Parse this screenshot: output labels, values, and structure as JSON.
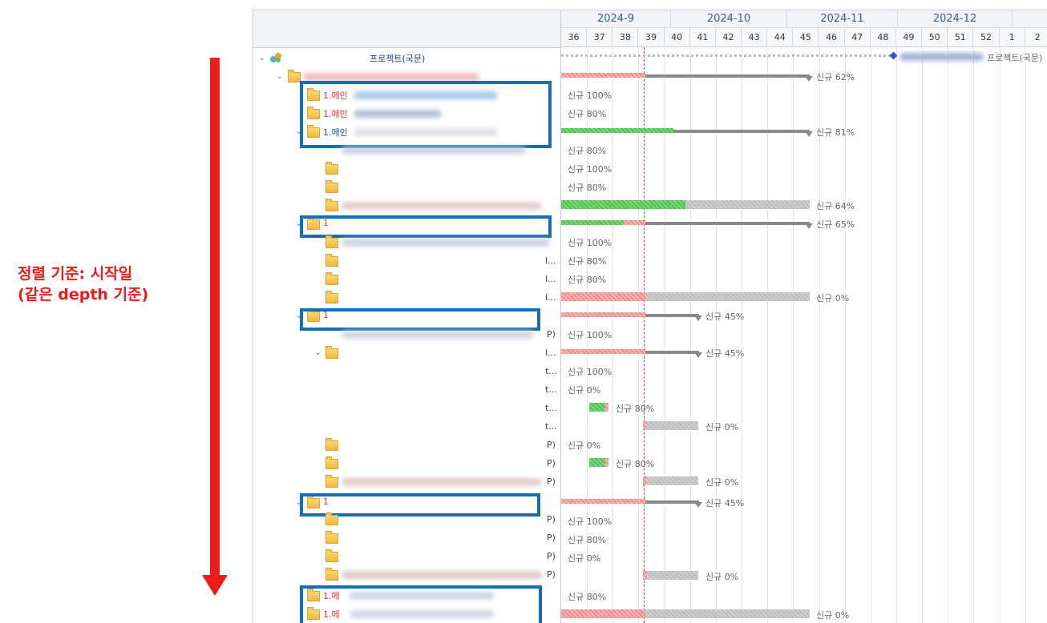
{
  "annotation": {
    "line1": "정렬 기준: 시작일",
    "line2": "(같은 depth 기준)",
    "color": "#ea1c1c"
  },
  "timeline": {
    "months": [
      {
        "label": "2024-9"
      },
      {
        "label": "2024-10"
      },
      {
        "label": "2024-11"
      },
      {
        "label": "2024-12"
      },
      {
        "label": ""
      }
    ],
    "weeks": [
      "36",
      "37",
      "38",
      "39",
      "40",
      "41",
      "42",
      "43",
      "44",
      "45",
      "46",
      "47",
      "48",
      "49",
      "50",
      "51",
      "52",
      "1",
      "2"
    ]
  },
  "tree": {
    "root_label": "프로젝트(국문)",
    "row_labels": {
      "r1": "1.메인",
      "r2": "1.메인",
      "r3": "1.메인",
      "r13": "1",
      "r18": "1",
      "r30": "1",
      "r35": "1.메",
      "r36": "1.메"
    },
    "truncated": {
      "t13": "l...",
      "t14": "l...",
      "t15": "l...",
      "t16": "l...",
      "t17": "P)",
      "t19": "t...",
      "t20": "t...",
      "t21": "t...",
      "t22": "t...",
      "t23": "P)",
      "t24": "P)",
      "t25": "P)",
      "t26": "P)",
      "t27": "P)",
      "t28": "P)",
      "t29": "P)"
    }
  },
  "bars": {
    "root": "프로젝트(국문)",
    "b0": "신규 62%",
    "b1": "신규 100%",
    "b2": "신규 80%",
    "b3": "신규 81%",
    "b4": "신규 80%",
    "b5": "신규 100%",
    "b6": "신규 80%",
    "b7": "신규 64%",
    "b8": "신규 65%",
    "b9": "신규 100%",
    "b10": "신규 80%",
    "b11": "신규 80%",
    "b12": "신규 0%",
    "b13": "신규 45%",
    "b14": "신규 100%",
    "b15": "신규 45%",
    "b16": "신규 100%",
    "b17": "신규 0%",
    "b18": "신규 80%",
    "b19": "신규 0%",
    "b20": "신규 0%",
    "b21": "신규 80%",
    "b22": "신규 0%",
    "b23": "신규 45%",
    "b24": "신규 100%",
    "b25": "신규 80%",
    "b26": "신규 0%",
    "b27": "신규 0%",
    "b28": "신규 80%",
    "b29": "신규 0%"
  },
  "colors": {
    "highlight_box": "#1a6db1",
    "today_line": "#e0303a",
    "progress_green": "#52c152",
    "late_pink": "#f48c8c",
    "remaining_gray": "#bdbdbd",
    "summary_gray": "#8a8a8a"
  }
}
